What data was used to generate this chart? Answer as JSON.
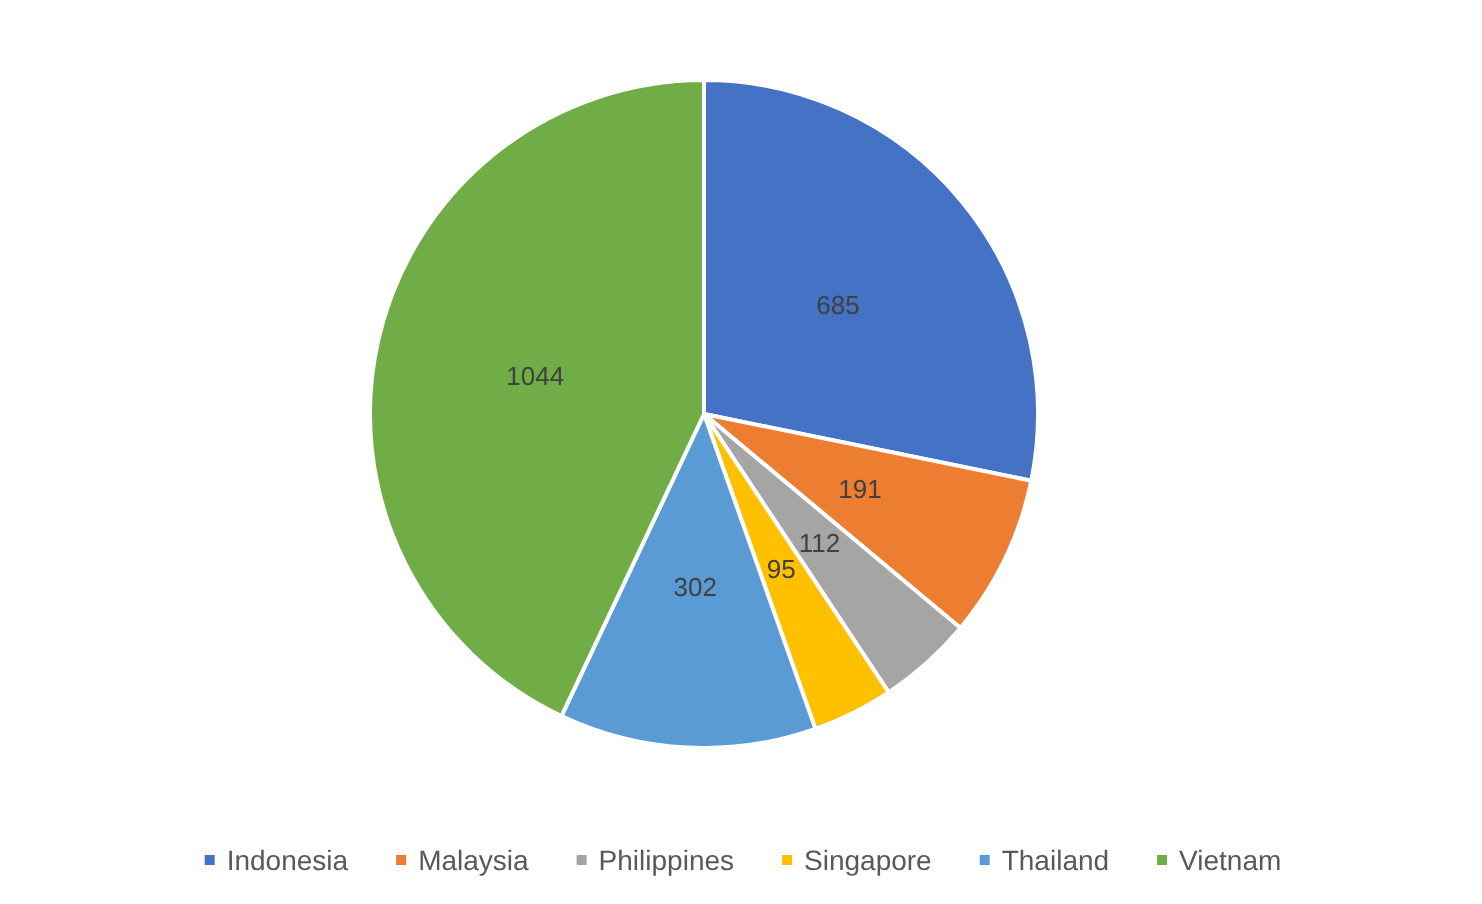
{
  "chart_data": {
    "type": "pie",
    "categories": [
      "Indonesia",
      "Malaysia",
      "Philippines",
      "Singapore",
      "Thailand",
      "Vietnam"
    ],
    "values": [
      685,
      191,
      112,
      95,
      302,
      1044
    ],
    "colors": [
      "#4472c4",
      "#ed7d31",
      "#a5a5a5",
      "#ffc000",
      "#5b9bd5",
      "#70ad47"
    ],
    "data_labels": true,
    "legend": "bottom"
  }
}
